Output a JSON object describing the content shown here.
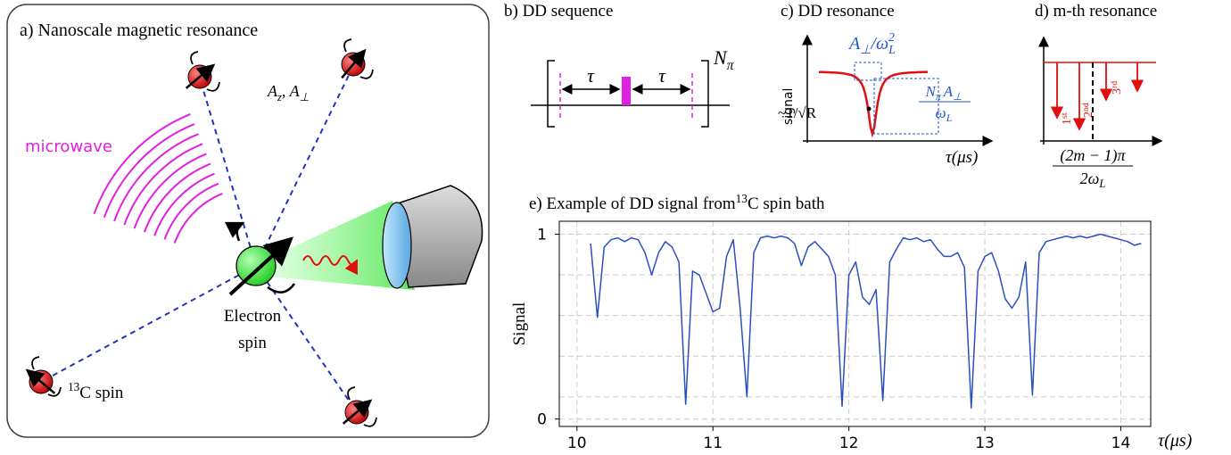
{
  "panel_a": {
    "title": "a) Nanoscale magnetic resonance",
    "microwave": "microwave",
    "coupling": [
      "A",
      "z",
      ", A",
      "⊥"
    ],
    "electron": [
      "Electron",
      "spin"
    ],
    "carbon": [
      "13",
      "C spin"
    ]
  },
  "panel_b": {
    "title": "b) DD sequence",
    "tau": "τ",
    "n_pi": [
      "N",
      "π"
    ]
  },
  "panel_c": {
    "title": "c) DD resonance",
    "ylabel": "signal",
    "width": [
      "A",
      "⊥",
      "/ω",
      "L",
      "2"
    ],
    "depth": "~1/√R",
    "height_num": [
      "N",
      "π",
      "A",
      "⊥"
    ],
    "height_den": [
      "ω",
      "L"
    ],
    "xlabel": "τ(μs)"
  },
  "panel_d": {
    "title": "d) m-th resonance",
    "orders": [
      [
        "1",
        "st"
      ],
      [
        "2",
        "nd"
      ],
      [
        "3",
        "rd"
      ]
    ],
    "num": "(2m − 1)π",
    "den": [
      "2ω",
      "L"
    ]
  },
  "chart_data": {
    "type": "line",
    "title": "e) Example of DD signal from",
    "title_sup": "13",
    "title_end": "C spin bath",
    "xlabel": "τ(μs)",
    "ylabel": "Signal",
    "x": [
      10.1,
      10.15,
      10.2,
      10.25,
      10.3,
      10.35,
      10.4,
      10.45,
      10.5,
      10.55,
      10.6,
      10.65,
      10.7,
      10.75,
      10.8,
      10.85,
      10.9,
      10.95,
      11.0,
      11.05,
      11.1,
      11.15,
      11.2,
      11.25,
      11.3,
      11.35,
      11.4,
      11.45,
      11.5,
      11.55,
      11.6,
      11.65,
      11.7,
      11.75,
      11.8,
      11.85,
      11.9,
      11.95,
      12.0,
      12.05,
      12.1,
      12.15,
      12.2,
      12.25,
      12.3,
      12.35,
      12.4,
      12.45,
      12.5,
      12.55,
      12.6,
      12.65,
      12.7,
      12.75,
      12.8,
      12.85,
      12.9,
      12.95,
      13.0,
      13.05,
      13.1,
      13.15,
      13.2,
      13.25,
      13.3,
      13.35,
      13.4,
      13.45,
      13.5,
      13.55,
      13.6,
      13.65,
      13.7,
      13.75,
      13.8,
      13.85,
      13.9,
      13.95,
      14.0,
      14.05,
      14.1,
      14.15
    ],
    "series": [
      {
        "color": "#2a4fc0",
        "values": [
          0.95,
          0.55,
          0.93,
          0.97,
          0.98,
          0.96,
          0.98,
          0.97,
          0.9,
          0.78,
          0.9,
          0.96,
          0.93,
          0.85,
          0.08,
          0.8,
          0.78,
          0.68,
          0.58,
          0.6,
          0.88,
          0.97,
          0.6,
          0.12,
          0.9,
          0.98,
          0.99,
          0.98,
          0.99,
          0.98,
          0.95,
          0.83,
          0.93,
          0.96,
          0.92,
          0.88,
          0.78,
          0.07,
          0.78,
          0.85,
          0.66,
          0.62,
          0.7,
          0.1,
          0.85,
          0.92,
          0.98,
          0.97,
          0.98,
          0.96,
          0.97,
          0.92,
          0.88,
          0.88,
          0.9,
          0.82,
          0.06,
          0.8,
          0.88,
          0.9,
          0.8,
          0.65,
          0.6,
          0.66,
          0.85,
          0.13,
          0.9,
          0.96,
          0.97,
          0.98,
          0.99,
          0.98,
          0.99,
          0.98,
          0.99,
          1.0,
          0.99,
          0.98,
          0.97,
          0.96,
          0.94,
          0.95
        ]
      }
    ],
    "xlim": [
      9.87,
      14.22
    ],
    "ylim": [
      -0.04,
      1.07
    ],
    "xticks": [
      10,
      11,
      12,
      13,
      14
    ],
    "yticks": [
      0,
      1
    ],
    "yminor": [
      0.12,
      0.34,
      0.56,
      0.78
    ],
    "grid": true
  }
}
